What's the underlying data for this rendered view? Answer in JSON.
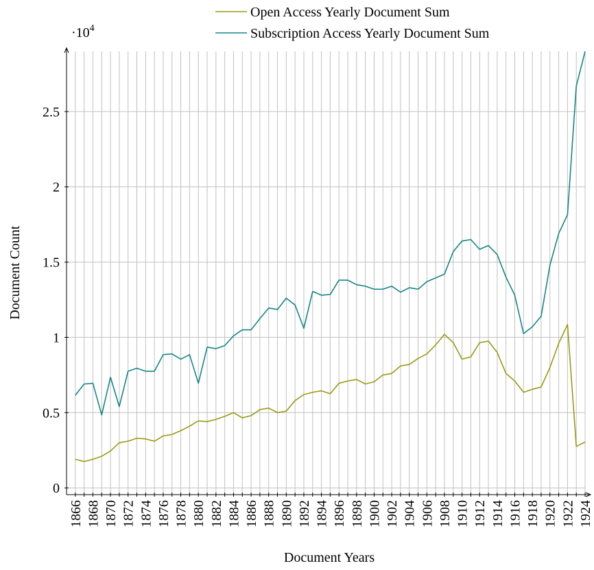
{
  "chart_data": {
    "type": "line",
    "x_label": "Document Years",
    "y_label": "Document Count",
    "axis_multiplier": {
      "base": "·10",
      "exponent": "4"
    },
    "x": [
      1866,
      1867,
      1868,
      1869,
      1870,
      1871,
      1872,
      1873,
      1874,
      1875,
      1876,
      1877,
      1878,
      1879,
      1880,
      1881,
      1882,
      1883,
      1884,
      1885,
      1886,
      1887,
      1888,
      1889,
      1890,
      1891,
      1892,
      1893,
      1894,
      1895,
      1896,
      1897,
      1898,
      1899,
      1900,
      1901,
      1902,
      1903,
      1904,
      1905,
      1906,
      1907,
      1908,
      1909,
      1910,
      1911,
      1912,
      1913,
      1914,
      1915,
      1916,
      1917,
      1918,
      1919,
      1920,
      1921,
      1922,
      1923,
      1924
    ],
    "series": [
      {
        "name": "Open Access Yearly Document Sum",
        "color": "#999a13",
        "values": [
          0.19,
          0.175,
          0.19,
          0.21,
          0.245,
          0.3,
          0.31,
          0.33,
          0.325,
          0.31,
          0.345,
          0.355,
          0.38,
          0.41,
          0.445,
          0.44,
          0.455,
          0.475,
          0.5,
          0.465,
          0.48,
          0.52,
          0.53,
          0.5,
          0.51,
          0.58,
          0.62,
          0.635,
          0.645,
          0.625,
          0.695,
          0.71,
          0.72,
          0.69,
          0.705,
          0.75,
          0.76,
          0.81,
          0.82,
          0.86,
          0.89,
          0.95,
          1.02,
          0.965,
          0.855,
          0.87,
          0.965,
          0.975,
          0.9,
          0.76,
          0.71,
          0.635,
          0.655,
          0.67,
          0.8,
          0.96,
          1.085,
          0.275,
          0.305
        ]
      },
      {
        "name": "Subscription Access Yearly Document Sum",
        "color": "#148585",
        "values": [
          0.615,
          0.69,
          0.695,
          0.485,
          0.735,
          0.54,
          0.775,
          0.795,
          0.775,
          0.775,
          0.885,
          0.89,
          0.855,
          0.885,
          0.695,
          0.935,
          0.925,
          0.945,
          1.01,
          1.05,
          1.05,
          1.125,
          1.195,
          1.185,
          1.26,
          1.215,
          1.06,
          1.305,
          1.28,
          1.285,
          1.38,
          1.38,
          1.35,
          1.34,
          1.32,
          1.32,
          1.34,
          1.3,
          1.33,
          1.32,
          1.37,
          1.395,
          1.42,
          1.57,
          1.64,
          1.65,
          1.585,
          1.61,
          1.55,
          1.4,
          1.28,
          1.025,
          1.07,
          1.14,
          1.48,
          1.69,
          1.815,
          2.67,
          2.9
        ]
      }
    ],
    "xlim": [
      1865,
      1924
    ],
    "ylim": [
      -0.045,
      2.9
    ],
    "xticks": [
      1866,
      1868,
      1870,
      1872,
      1874,
      1876,
      1878,
      1880,
      1882,
      1884,
      1886,
      1888,
      1890,
      1892,
      1894,
      1896,
      1898,
      1900,
      1902,
      1904,
      1906,
      1908,
      1910,
      1912,
      1914,
      1916,
      1918,
      1920,
      1922,
      1924
    ],
    "xminorticks": [
      1867,
      1869,
      1871,
      1873,
      1875,
      1877,
      1879,
      1881,
      1883,
      1885,
      1887,
      1889,
      1891,
      1893,
      1895,
      1897,
      1899,
      1901,
      1903,
      1905,
      1907,
      1909,
      1911,
      1913,
      1915,
      1917,
      1919,
      1921,
      1923
    ],
    "yticks": [
      0,
      0.5,
      1,
      1.5,
      2,
      2.5
    ],
    "grid": true,
    "legend": "top"
  }
}
